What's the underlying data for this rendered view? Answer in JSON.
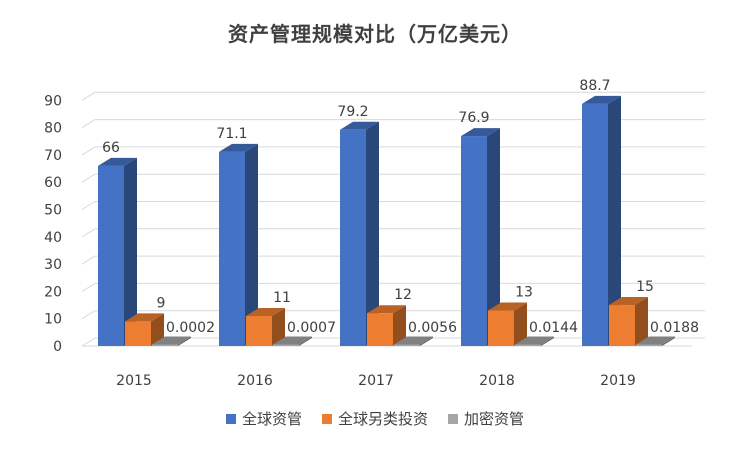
{
  "chart_data": {
    "type": "bar",
    "title": "资产管理规模对比（万亿美元）",
    "categories": [
      "2015",
      "2016",
      "2017",
      "2018",
      "2019"
    ],
    "y_ticks": [
      "0",
      "10",
      "20",
      "30",
      "40",
      "50",
      "60",
      "70",
      "80",
      "90"
    ],
    "ylim": [
      0,
      90
    ],
    "grid": true,
    "legend_position": "bottom",
    "series": [
      {
        "name": "全球资管",
        "color": "#4472C4",
        "values": [
          66,
          71.1,
          79.2,
          76.9,
          88.7
        ],
        "labels": [
          "66",
          "71.1",
          "79.2",
          "76.9",
          "88.7"
        ]
      },
      {
        "name": "全球另类投资",
        "color": "#ED7D31",
        "values": [
          9,
          11,
          12,
          13,
          15
        ],
        "labels": [
          "9",
          "11",
          "12",
          "13",
          "15"
        ]
      },
      {
        "name": "加密资管",
        "color": "#A5A5A5",
        "values": [
          0.0002,
          0.0007,
          0.0056,
          0.0144,
          0.0188
        ],
        "labels": [
          "0.0002",
          "0.0007",
          "0.0056",
          "0.0144",
          "0.0188"
        ]
      }
    ]
  }
}
